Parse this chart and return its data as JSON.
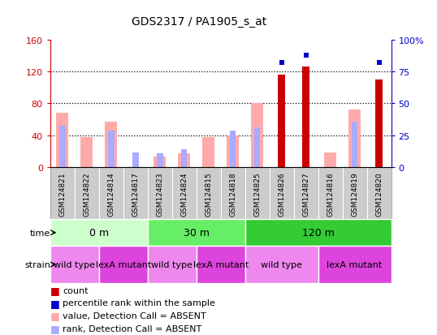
{
  "title": "GDS2317 / PA1905_s_at",
  "samples": [
    "GSM124821",
    "GSM124822",
    "GSM124814",
    "GSM124817",
    "GSM124823",
    "GSM124824",
    "GSM124815",
    "GSM124818",
    "GSM124825",
    "GSM124826",
    "GSM124827",
    "GSM124816",
    "GSM124819",
    "GSM124820"
  ],
  "count_values": [
    0,
    0,
    0,
    0,
    0,
    0,
    0,
    0,
    0,
    116,
    126,
    0,
    0,
    110
  ],
  "percentile_rank": [
    null,
    null,
    null,
    null,
    null,
    null,
    null,
    null,
    null,
    82,
    88,
    null,
    null,
    82
  ],
  "absent_value": [
    68,
    38,
    57,
    0,
    13,
    17,
    38,
    40,
    80,
    0,
    0,
    18,
    72,
    0
  ],
  "absent_rank": [
    52,
    0,
    46,
    18,
    17,
    22,
    0,
    46,
    50,
    0,
    0,
    0,
    57,
    0
  ],
  "time_groups": [
    {
      "label": "0 m",
      "start": 0,
      "end": 4,
      "color": "#ccffcc"
    },
    {
      "label": "30 m",
      "start": 4,
      "end": 8,
      "color": "#66ee66"
    },
    {
      "label": "120 m",
      "start": 8,
      "end": 14,
      "color": "#33cc33"
    }
  ],
  "strain_groups": [
    {
      "label": "wild type",
      "start": 0,
      "end": 2,
      "color": "#ee88ee"
    },
    {
      "label": "lexA mutant",
      "start": 2,
      "end": 4,
      "color": "#dd44dd"
    },
    {
      "label": "wild type",
      "start": 4,
      "end": 6,
      "color": "#ee88ee"
    },
    {
      "label": "lexA mutant",
      "start": 6,
      "end": 8,
      "color": "#dd44dd"
    },
    {
      "label": "wild type",
      "start": 8,
      "end": 11,
      "color": "#ee88ee"
    },
    {
      "label": "lexA mutant",
      "start": 11,
      "end": 14,
      "color": "#dd44dd"
    }
  ],
  "ylim_left": [
    0,
    160
  ],
  "ylim_right": [
    0,
    100
  ],
  "yticks_left": [
    0,
    40,
    80,
    120,
    160
  ],
  "yticks_right": [
    0,
    25,
    50,
    75,
    100
  ],
  "count_color": "#cc0000",
  "percentile_color": "#0000cc",
  "absent_value_color": "#ffaaaa",
  "absent_rank_color": "#aaaaff",
  "grid_color": "#000000",
  "bg_color": "#ffffff",
  "plot_bg": "#ffffff",
  "label_color_left": "#cc0000",
  "label_color_right": "#0000cc",
  "sample_bg_color": "#cccccc",
  "legend_items": [
    {
      "color": "#cc0000",
      "label": "count"
    },
    {
      "color": "#0000cc",
      "label": "percentile rank within the sample"
    },
    {
      "color": "#ffaaaa",
      "label": "value, Detection Call = ABSENT"
    },
    {
      "color": "#aaaaff",
      "label": "rank, Detection Call = ABSENT"
    }
  ]
}
